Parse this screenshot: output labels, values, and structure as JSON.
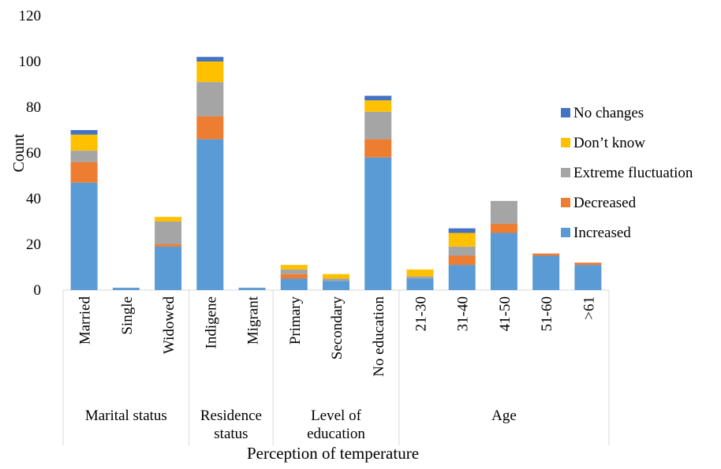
{
  "chart_data": {
    "type": "bar",
    "stacked": true,
    "title": "",
    "xlabel": "Perception of temperature",
    "ylabel": "Count",
    "ylim": [
      0,
      120
    ],
    "yticks": [
      0,
      20,
      40,
      60,
      80,
      100,
      120
    ],
    "grid": false,
    "legend_position": "right",
    "categories": [
      "Married",
      "Single",
      "Widowed",
      "Indigene",
      "Migrant",
      "Primary",
      "Secondary",
      "No education",
      "21-30",
      "31-40",
      "41-50",
      "51-60",
      ">61"
    ],
    "groups": [
      {
        "label": "Marital status",
        "members": [
          "Married",
          "Single",
          "Widowed"
        ]
      },
      {
        "label": "Residence status",
        "members": [
          "Indigene",
          "Migrant"
        ]
      },
      {
        "label": "Level of education",
        "members": [
          "Primary",
          "Secondary",
          "No education"
        ]
      },
      {
        "label": "Age",
        "members": [
          "21-30",
          "31-40",
          "41-50",
          "51-60",
          ">61"
        ]
      }
    ],
    "series": [
      {
        "name": "Increased",
        "color": "#5B9BD5",
        "values": [
          47,
          1,
          19,
          66,
          1,
          5,
          4,
          58,
          5,
          11,
          25,
          15,
          11
        ]
      },
      {
        "name": "Decreased",
        "color": "#ED7D31",
        "values": [
          9,
          0,
          1,
          10,
          0,
          2,
          0,
          8,
          0,
          4,
          4,
          1,
          1
        ]
      },
      {
        "name": "Extreme fluctuation",
        "color": "#A5A5A5",
        "values": [
          5,
          0,
          10,
          15,
          0,
          2,
          1,
          12,
          1,
          4,
          10,
          0,
          0
        ]
      },
      {
        "name": "Don’t know",
        "color": "#FFC000",
        "values": [
          7,
          0,
          2,
          9,
          0,
          2,
          2,
          5,
          3,
          6,
          0,
          0,
          0
        ]
      },
      {
        "name": "No changes",
        "color": "#4472C4",
        "values": [
          2,
          0,
          0,
          2,
          0,
          0,
          0,
          2,
          0,
          2,
          0,
          0,
          0
        ]
      }
    ],
    "legend_order": [
      "No changes",
      "Don’t know",
      "Extreme fluctuation",
      "Decreased",
      "Increased"
    ]
  }
}
